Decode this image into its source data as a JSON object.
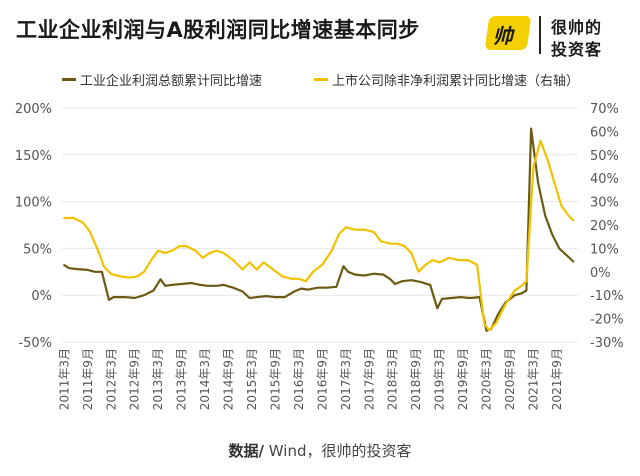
{
  "title": "工业企业利润与A股利润同比增速基本同步",
  "logo": {
    "badge_text": "帅",
    "line1": "很帅的",
    "line2": "投资客"
  },
  "source": {
    "label": "数据/",
    "text": " Wind，很帅的投资客"
  },
  "colors": {
    "industrial": "#6b5a14",
    "listed": "#f2c200",
    "axis_text": "#555555",
    "grid": "#e6e6e6"
  },
  "chart_data": {
    "type": "line",
    "title": "工业企业利润与A股利润同比增速基本同步",
    "grid": true,
    "legend_position": "top",
    "left_axis": {
      "ticks": [
        "200%",
        "150%",
        "100%",
        "50%",
        "0%",
        "-50%"
      ],
      "range": [
        -50,
        200
      ]
    },
    "right_axis": {
      "ticks": [
        "70%",
        "60%",
        "50%",
        "40%",
        "30%",
        "20%",
        "10%",
        "0%",
        "-10%",
        "-20%",
        "-30%"
      ],
      "range": [
        -30,
        70
      ]
    },
    "x_tick_labels": [
      "2011年3月",
      "2011年9月",
      "2012年3月",
      "2012年9月",
      "2013年3月",
      "2013年9月",
      "2014年3月",
      "2014年9月",
      "2015年3月",
      "2015年9月",
      "2016年3月",
      "2016年9月",
      "2017年3月",
      "2017年9月",
      "2018年3月",
      "2018年9月",
      "2019年3月",
      "2019年9月",
      "2020年3月",
      "2020年9月",
      "2021年3月",
      "2021年9月"
    ],
    "series": [
      {
        "name": "工业企业利润总额累计同比增速",
        "axis": "left",
        "color": "#6b5a14",
        "values": [
          [
            2011.0,
            32
          ],
          [
            2011.1,
            29
          ],
          [
            2011.25,
            28
          ],
          [
            2011.5,
            27
          ],
          [
            2011.65,
            25
          ],
          [
            2011.8,
            25
          ],
          [
            2011.95,
            -5
          ],
          [
            2012.05,
            -2
          ],
          [
            2012.3,
            -2
          ],
          [
            2012.5,
            -3
          ],
          [
            2012.7,
            0
          ],
          [
            2012.9,
            5
          ],
          [
            2013.05,
            17
          ],
          [
            2013.15,
            10
          ],
          [
            2013.3,
            11
          ],
          [
            2013.5,
            12
          ],
          [
            2013.7,
            13
          ],
          [
            2013.9,
            11
          ],
          [
            2014.05,
            10
          ],
          [
            2014.25,
            10
          ],
          [
            2014.4,
            11
          ],
          [
            2014.6,
            8
          ],
          [
            2014.8,
            4
          ],
          [
            2014.95,
            -3
          ],
          [
            2015.1,
            -2
          ],
          [
            2015.3,
            -1
          ],
          [
            2015.5,
            -2
          ],
          [
            2015.7,
            -2
          ],
          [
            2015.9,
            4
          ],
          [
            2016.05,
            7
          ],
          [
            2016.2,
            6
          ],
          [
            2016.4,
            8
          ],
          [
            2016.6,
            8
          ],
          [
            2016.8,
            9
          ],
          [
            2016.95,
            31
          ],
          [
            2017.05,
            25
          ],
          [
            2017.2,
            22
          ],
          [
            2017.4,
            21
          ],
          [
            2017.6,
            23
          ],
          [
            2017.8,
            22
          ],
          [
            2017.95,
            17
          ],
          [
            2018.05,
            12
          ],
          [
            2018.2,
            15
          ],
          [
            2018.4,
            16
          ],
          [
            2018.6,
            14
          ],
          [
            2018.8,
            11
          ],
          [
            2018.95,
            -14
          ],
          [
            2019.05,
            -4
          ],
          [
            2019.25,
            -3
          ],
          [
            2019.45,
            -2
          ],
          [
            2019.65,
            -3
          ],
          [
            2019.85,
            -2
          ],
          [
            2020.0,
            -38
          ],
          [
            2020.1,
            -36
          ],
          [
            2020.25,
            -20
          ],
          [
            2020.4,
            -8
          ],
          [
            2020.6,
            0
          ],
          [
            2020.75,
            2
          ],
          [
            2020.85,
            5
          ],
          [
            2020.95,
            178
          ],
          [
            2021.1,
            120
          ],
          [
            2021.25,
            85
          ],
          [
            2021.4,
            65
          ],
          [
            2021.55,
            50
          ],
          [
            2021.7,
            43
          ],
          [
            2021.85,
            36
          ]
        ]
      },
      {
        "name": "上市公司除非净利润累计同比增速（右轴）",
        "axis": "right",
        "color": "#f2c200",
        "values": [
          [
            2011.0,
            23
          ],
          [
            2011.2,
            23
          ],
          [
            2011.4,
            21
          ],
          [
            2011.55,
            17
          ],
          [
            2011.7,
            10
          ],
          [
            2011.85,
            2
          ],
          [
            2012.0,
            -1
          ],
          [
            2012.2,
            -2
          ],
          [
            2012.4,
            -2.5
          ],
          [
            2012.55,
            -2
          ],
          [
            2012.7,
            0
          ],
          [
            2012.85,
            5
          ],
          [
            2013.0,
            9
          ],
          [
            2013.15,
            8
          ],
          [
            2013.3,
            9
          ],
          [
            2013.45,
            11
          ],
          [
            2013.6,
            11
          ],
          [
            2013.8,
            9
          ],
          [
            2013.95,
            6
          ],
          [
            2014.1,
            8
          ],
          [
            2014.25,
            9
          ],
          [
            2014.4,
            8
          ],
          [
            2014.6,
            5
          ],
          [
            2014.8,
            1
          ],
          [
            2014.95,
            4
          ],
          [
            2015.1,
            1
          ],
          [
            2015.25,
            4
          ],
          [
            2015.45,
            1
          ],
          [
            2015.65,
            -2
          ],
          [
            2015.85,
            -3
          ],
          [
            2016.0,
            -3
          ],
          [
            2016.15,
            -4
          ],
          [
            2016.3,
            0
          ],
          [
            2016.5,
            3
          ],
          [
            2016.7,
            9
          ],
          [
            2016.85,
            16
          ],
          [
            2017.0,
            19
          ],
          [
            2017.2,
            18
          ],
          [
            2017.4,
            18
          ],
          [
            2017.6,
            17
          ],
          [
            2017.75,
            13
          ],
          [
            2017.95,
            12
          ],
          [
            2018.1,
            12
          ],
          [
            2018.25,
            11
          ],
          [
            2018.4,
            8
          ],
          [
            2018.55,
            0
          ],
          [
            2018.7,
            3
          ],
          [
            2018.85,
            5
          ],
          [
            2019.0,
            4
          ],
          [
            2019.2,
            6
          ],
          [
            2019.4,
            5
          ],
          [
            2019.6,
            5
          ],
          [
            2019.8,
            3
          ],
          [
            2019.95,
            -22
          ],
          [
            2020.05,
            -25
          ],
          [
            2020.2,
            -22
          ],
          [
            2020.4,
            -14
          ],
          [
            2020.6,
            -8
          ],
          [
            2020.75,
            -6
          ],
          [
            2020.85,
            -4
          ],
          [
            2021.0,
            45
          ],
          [
            2021.15,
            56
          ],
          [
            2021.3,
            48
          ],
          [
            2021.45,
            38
          ],
          [
            2021.6,
            28
          ],
          [
            2021.75,
            24
          ],
          [
            2021.85,
            22
          ]
        ]
      }
    ]
  }
}
